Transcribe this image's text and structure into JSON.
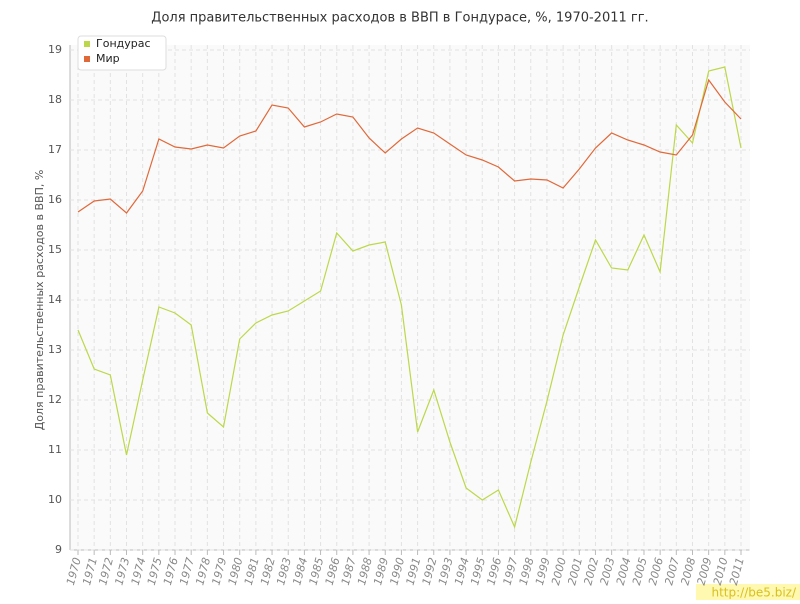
{
  "chart_data": {
    "type": "line",
    "title": "Доля правительственных расходов в ВВП в Гондурасе, %, 1970-2011 гг.",
    "y_label": "Доля правительственных расходов в ВВП, %",
    "watermark": "http://be5.biz/",
    "categories": [
      "1970",
      "1971",
      "1972",
      "1973",
      "1974",
      "1975",
      "1976",
      "1977",
      "1978",
      "1979",
      "1980",
      "1981",
      "1982",
      "1983",
      "1984",
      "1985",
      "1986",
      "1987",
      "1988",
      "1989",
      "1990",
      "1991",
      "1992",
      "1993",
      "1994",
      "1995",
      "1996",
      "1997",
      "1998",
      "1999",
      "2000",
      "2001",
      "2002",
      "2003",
      "2004",
      "2005",
      "2006",
      "2007",
      "2008",
      "2009",
      "2010",
      "2011"
    ],
    "series": [
      {
        "name": "Гондурас",
        "color": "#bcd84a",
        "values": [
          13.4,
          12.62,
          12.5,
          10.9,
          12.4,
          13.86,
          13.74,
          13.5,
          11.74,
          11.46,
          13.22,
          13.54,
          13.7,
          13.78,
          13.98,
          14.18,
          15.34,
          14.98,
          15.1,
          15.16,
          13.9,
          11.36,
          12.2,
          11.16,
          10.24,
          10.0,
          10.2,
          9.46,
          10.76,
          11.98,
          13.3,
          14.26,
          15.2,
          14.64,
          14.6,
          15.3,
          14.56,
          17.5,
          17.14,
          18.58,
          18.66,
          17.04
        ]
      },
      {
        "name": "Мир",
        "color": "#e0693a",
        "values": [
          15.76,
          15.98,
          16.02,
          15.74,
          16.18,
          17.22,
          17.06,
          17.02,
          17.1,
          17.04,
          17.28,
          17.38,
          17.9,
          17.84,
          17.46,
          17.56,
          17.72,
          17.66,
          17.24,
          16.94,
          17.22,
          17.44,
          17.34,
          17.12,
          16.9,
          16.8,
          16.66,
          16.38,
          16.42,
          16.4,
          16.24,
          16.62,
          17.04,
          17.34,
          17.2,
          17.1,
          16.96,
          16.9,
          17.3,
          18.4,
          17.96,
          17.62
        ]
      }
    ],
    "ylim": [
      9,
      19
    ],
    "yticks": [
      9,
      10,
      11,
      12,
      13,
      14,
      15,
      16,
      17,
      18,
      19
    ],
    "grid": true
  }
}
